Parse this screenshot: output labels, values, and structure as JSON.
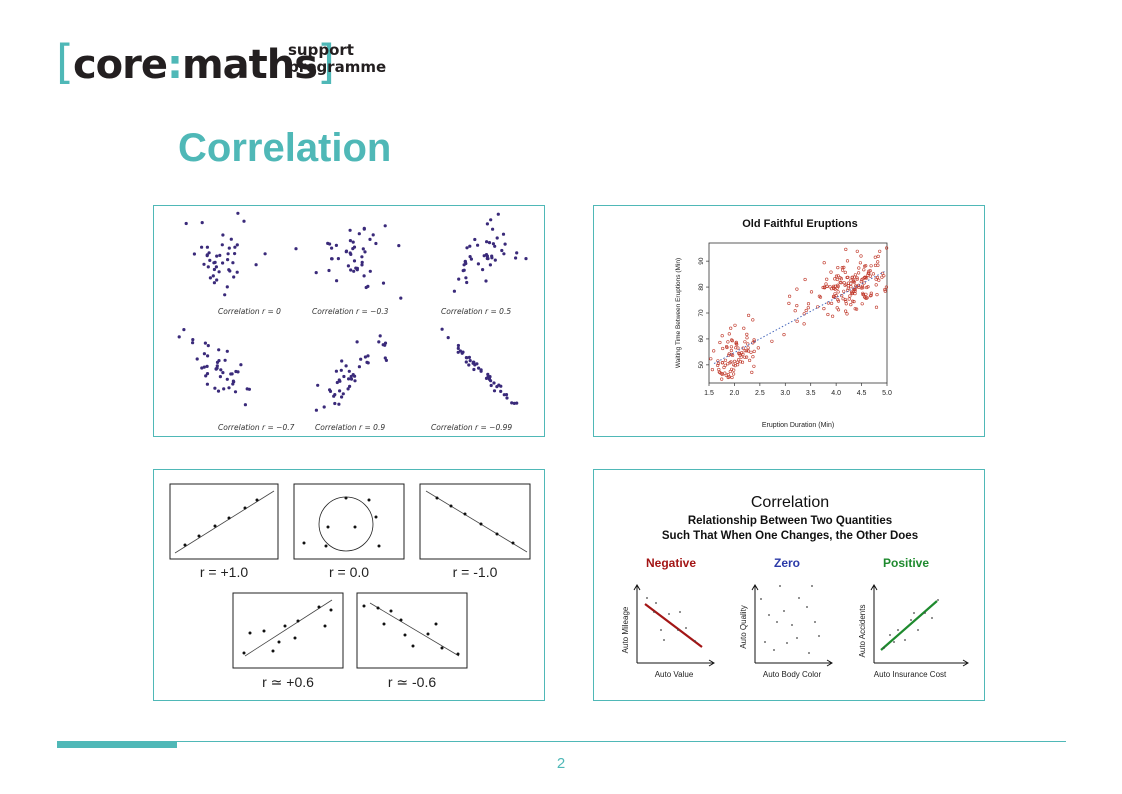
{
  "logo": {
    "bracket_open": "[",
    "word_core": "core",
    "colon": ":",
    "word_maths": "maths",
    "bracket_close": "]",
    "side_line1": "support",
    "side_line2": "programme"
  },
  "title": "Correlation",
  "panels": {
    "scatter_grid": {
      "labels": [
        "Correlation r = 0",
        "Correlation r = −0.3",
        "Correlation r = 0.5",
        "Correlation r = −0.7",
        "Correlation r = 0.9",
        "Correlation r = −0.99"
      ],
      "correlations": [
        0,
        -0.3,
        0.5,
        -0.7,
        0.9,
        -0.99
      ],
      "point_color": "#3a2a7a"
    },
    "old_faithful": {
      "title": "Old Faithful Eruptions",
      "xlabel": "Eruption Duration (Min)",
      "ylabel": "Waiting Time Between Eruptions (Min)",
      "x_ticks": [
        "1.5",
        "2.0",
        "2.5",
        "3.0",
        "3.5",
        "4.0",
        "4.5",
        "5.0"
      ],
      "y_ticks": [
        "50",
        "60",
        "70",
        "80",
        "90"
      ],
      "xlim": [
        1.5,
        5.0
      ],
      "ylim": [
        43,
        97
      ],
      "point_color": "#c0392b"
    },
    "r_values": {
      "labels": [
        "r = +1.0",
        "r = 0.0",
        "r = -1.0",
        "r ≃ +0.6",
        "r ≃ -0.6"
      ],
      "correlations": [
        1.0,
        0.0,
        -1.0,
        0.6,
        -0.6
      ]
    },
    "concept": {
      "heading": "Correlation",
      "sub1": "Relationship Between Two Quantities",
      "sub2": "Such That When One Changes, the Other Does",
      "negative": {
        "label": "Negative",
        "xlabel": "Auto Value",
        "ylabel": "Auto Mileage",
        "color": "#a31515"
      },
      "zero": {
        "label": "Zero",
        "xlabel": "Auto Body Color",
        "ylabel": "Auto Quality",
        "color": "#2b3aa8"
      },
      "positive": {
        "label": "Positive",
        "xlabel": "Auto Insurance Cost",
        "ylabel": "Auto Accidents",
        "color": "#1e8a2e"
      }
    }
  },
  "page_number": "2",
  "colors": {
    "accent": "#4fb8b7",
    "text": "#231f20"
  }
}
